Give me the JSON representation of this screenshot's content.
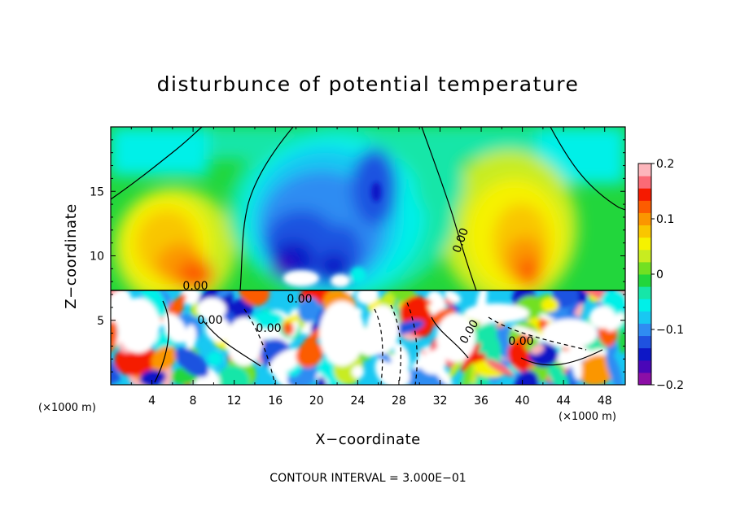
{
  "chart_data": {
    "type": "heatmap",
    "title": "disturbunce of potential temperature",
    "xlabel": "X−coordinate",
    "ylabel": "Z−coordinate",
    "x_unit": "(×1000 m)",
    "y_unit": "(×1000 m)",
    "xlim": [
      0,
      50
    ],
    "ylim": [
      0,
      20
    ],
    "xticks": [
      4,
      8,
      12,
      16,
      20,
      24,
      28,
      32,
      36,
      40,
      44,
      48
    ],
    "xtick_labels": [
      "4",
      "8",
      "12",
      "16",
      "20",
      "24",
      "28",
      "32",
      "36",
      "40",
      "44",
      "48"
    ],
    "yticks": [
      5,
      10,
      15
    ],
    "ytick_labels": [
      "5",
      "10",
      "15"
    ],
    "colorbar": {
      "min": -0.2,
      "max": 0.2,
      "ticks": [
        0.2,
        0.1,
        0,
        -0.1,
        -0.2
      ],
      "tick_labels": [
        "0.2",
        "0.1",
        "0",
        "−0.1",
        "−0.2"
      ],
      "colors": [
        "#8c0ea6",
        "#4a06b8",
        "#0d17c6",
        "#1f52e0",
        "#2f8cf2",
        "#18c8f2",
        "#00f0e8",
        "#16e6a8",
        "#22d63c",
        "#72e022",
        "#c8ec20",
        "#f6f200",
        "#f9c600",
        "#fb9600",
        "#fc5c00",
        "#f51a00",
        "#fb6a76",
        "#fdb6bc"
      ]
    },
    "contour_labels": [
      "0.00",
      "0.00",
      "0.00",
      "0.00",
      "0.00",
      "0.00",
      "0.00"
    ],
    "annotation": "CONTOUR INTERVAL = 3.000E−01",
    "legend": "colorbar-right",
    "grid": false
  }
}
